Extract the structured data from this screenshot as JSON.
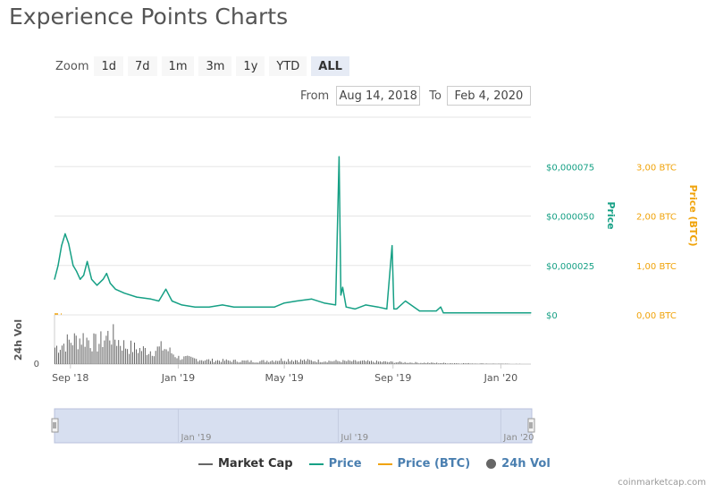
{
  "page": {
    "title": "Experience Points Charts",
    "credit": "coinmarketcap.com"
  },
  "zoom": {
    "label": "Zoom",
    "buttons": [
      "1d",
      "7d",
      "1m",
      "3m",
      "1y",
      "YTD",
      "ALL"
    ],
    "active": "ALL"
  },
  "range": {
    "from_label": "From",
    "from_value": "Aug 14, 2018",
    "to_label": "To",
    "to_value": "Feb 4, 2020"
  },
  "colors": {
    "price": "#16a085",
    "price_btc": "#f0a30a",
    "market_cap": "#666666",
    "volume": "#666666",
    "navigator_fill": "#d7dff0"
  },
  "legend": [
    {
      "name": "Market Cap",
      "kind": "line",
      "color": "#666666"
    },
    {
      "name": "Price",
      "kind": "line",
      "color": "#16a085"
    },
    {
      "name": "Price (BTC)",
      "kind": "line",
      "color": "#f0a30a"
    },
    {
      "name": "24h Vol",
      "kind": "dot",
      "color": "#666666"
    }
  ],
  "chart_data": {
    "type": "line",
    "x_range": [
      "2018-08-14",
      "2020-02-04"
    ],
    "x_ticks": [
      {
        "date": "2018-09-01",
        "label": "Sep '18"
      },
      {
        "date": "2019-01-01",
        "label": "Jan '19"
      },
      {
        "date": "2019-05-01",
        "label": "May '19"
      },
      {
        "date": "2019-09-01",
        "label": "Sep '19"
      },
      {
        "date": "2020-01-01",
        "label": "Jan '20"
      }
    ],
    "price_axis": {
      "label": "Price",
      "range": [
        0,
        0.0001
      ],
      "ticks": [
        {
          "value": 0,
          "label": "$0"
        },
        {
          "value": 2.5e-05,
          "label": "$0,000025"
        },
        {
          "value": 5e-05,
          "label": "$0,000050"
        },
        {
          "value": 7.5e-05,
          "label": "$0,000075"
        }
      ]
    },
    "btc_axis": {
      "label": "Price (BTC)",
      "range": [
        0,
        4
      ],
      "ticks": [
        {
          "value": 0,
          "label": "0,00 BTC"
        },
        {
          "value": 1,
          "label": "1,00 BTC"
        },
        {
          "value": 2,
          "label": "2,00 BTC"
        },
        {
          "value": 3,
          "label": "3,00 BTC"
        }
      ]
    },
    "volume_axis": {
      "label": "24h Vol",
      "ticks": [
        {
          "value": 0,
          "label": "0"
        }
      ]
    },
    "grid": true,
    "legend_position": "bottom-center",
    "series": [
      {
        "name": "Price",
        "axis": "price",
        "x": [
          "2018-08-14",
          "2018-08-18",
          "2018-08-22",
          "2018-08-26",
          "2018-08-30",
          "2018-09-04",
          "2018-09-08",
          "2018-09-12",
          "2018-09-16",
          "2018-09-20",
          "2018-09-25",
          "2018-10-01",
          "2018-10-08",
          "2018-10-12",
          "2018-10-16",
          "2018-10-22",
          "2018-11-01",
          "2018-11-15",
          "2018-12-01",
          "2018-12-10",
          "2018-12-18",
          "2018-12-25",
          "2019-01-05",
          "2019-01-20",
          "2019-02-05",
          "2019-02-20",
          "2019-03-05",
          "2019-03-20",
          "2019-04-05",
          "2019-04-20",
          "2019-05-01",
          "2019-05-15",
          "2019-06-01",
          "2019-06-15",
          "2019-06-28",
          "2019-07-02",
          "2019-07-04",
          "2019-07-06",
          "2019-07-10",
          "2019-07-20",
          "2019-08-01",
          "2019-08-15",
          "2019-08-25",
          "2019-08-31",
          "2019-09-02",
          "2019-09-05",
          "2019-09-15",
          "2019-10-01",
          "2019-10-15",
          "2019-10-20",
          "2019-10-25",
          "2019-10-28",
          "2019-11-15",
          "2019-12-01",
          "2019-12-15",
          "2020-01-01",
          "2020-01-15",
          "2020-02-04"
        ],
        "values": [
          1.8e-05,
          2.5e-05,
          3.5e-05,
          4.1e-05,
          3.6e-05,
          2.5e-05,
          2.2e-05,
          1.8e-05,
          2e-05,
          2.7e-05,
          1.8e-05,
          1.5e-05,
          1.8e-05,
          2.1e-05,
          1.6e-05,
          1.3e-05,
          1.1e-05,
          9e-06,
          8e-06,
          7e-06,
          1.3e-05,
          7e-06,
          5e-06,
          4e-06,
          4e-06,
          5e-06,
          4e-06,
          4e-06,
          4e-06,
          4e-06,
          6e-06,
          7e-06,
          8e-06,
          6e-06,
          5e-06,
          8e-05,
          1e-05,
          1.4e-05,
          4e-06,
          3e-06,
          5e-06,
          4e-06,
          3e-06,
          3.5e-05,
          3e-06,
          3e-06,
          7e-06,
          2e-06,
          2e-06,
          2e-06,
          4e-06,
          1e-06,
          1e-06,
          1e-06,
          1e-06,
          1e-06,
          1e-06,
          1e-06
        ]
      },
      {
        "name": "Price (BTC)",
        "axis": "btc",
        "x": [
          "2018-08-14",
          "2018-08-22"
        ],
        "values": [
          5e-06,
          5e-06
        ]
      },
      {
        "name": "24h Vol",
        "axis": "volume",
        "x": [
          "2018-08-14",
          "2018-09-01",
          "2018-09-15",
          "2018-10-01",
          "2018-10-15",
          "2018-11-01",
          "2018-11-15",
          "2018-12-01",
          "2018-12-15",
          "2019-01-01",
          "2019-02-01",
          "2019-03-01",
          "2019-04-01",
          "2019-05-01",
          "2019-06-01",
          "2019-07-01",
          "2019-08-01",
          "2019-09-01",
          "2019-10-01",
          "2019-10-25",
          "2020-02-04"
        ],
        "values": [
          50,
          70,
          80,
          60,
          90,
          55,
          45,
          40,
          50,
          20,
          12,
          10,
          8,
          14,
          10,
          9,
          8,
          6,
          4,
          3,
          0
        ]
      }
    ]
  }
}
